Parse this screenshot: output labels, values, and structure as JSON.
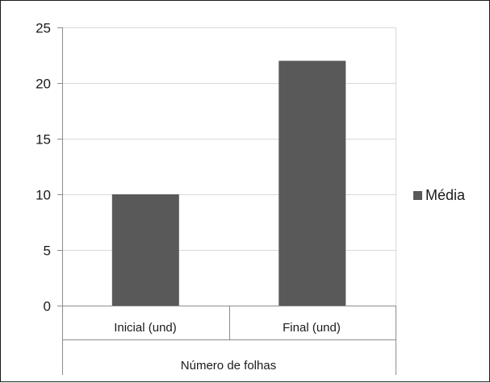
{
  "chart_data": {
    "type": "bar",
    "categories": [
      "Inicial (und)",
      "Final (und)"
    ],
    "group_label": "Número de folhas",
    "series": [
      {
        "name": "Média",
        "values": [
          10,
          22
        ],
        "color": "#595959"
      }
    ],
    "ylim": [
      0,
      25
    ],
    "yticks": [
      "0",
      "5",
      "10",
      "15",
      "20",
      "25"
    ],
    "grid": true,
    "legend_position": "right",
    "colors": {
      "grid": "#d9d9d9",
      "axis": "#8c8c8c",
      "text": "#1a1a1a"
    }
  }
}
